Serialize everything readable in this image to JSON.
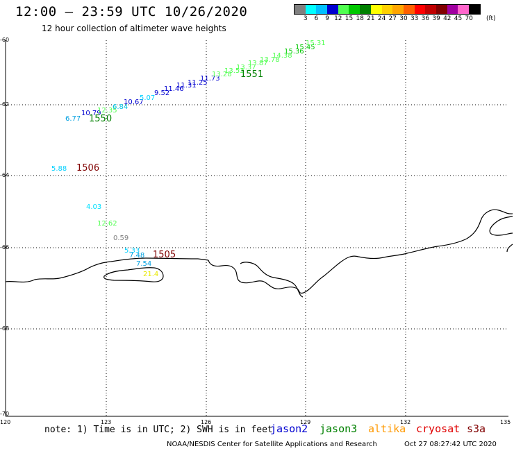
{
  "title": "12:00 – 23:59 UTC 10/26/2020",
  "subtitle": "12 hour collection of altimeter wave heights",
  "colorbar": {
    "colors": [
      "#808080",
      "#00ffff",
      "#00bfff",
      "#0000d0",
      "#50ff50",
      "#00c800",
      "#008000",
      "#ffff00",
      "#ffd000",
      "#ffa500",
      "#ff6000",
      "#ff0000",
      "#c00000",
      "#800000",
      "#a000a0",
      "#ff66cc",
      "#000000"
    ],
    "labels": [
      "3",
      "6",
      "9",
      "12",
      "15",
      "18",
      "21",
      "24",
      "27",
      "30",
      "33",
      "36",
      "39",
      "42",
      "45",
      "70"
    ],
    "unit": "(ft)"
  },
  "map": {
    "lat_labels": [
      "-60",
      "-62",
      "-64",
      "-66",
      "-68",
      "-70"
    ],
    "lon_labels": [
      "120",
      "123",
      "126",
      "129",
      "132",
      "135"
    ],
    "observations": [
      {
        "text": "6.77",
        "color": "#00a0e0"
      },
      {
        "text": "10.79",
        "color": "#0000d0"
      },
      {
        "text": "12.35",
        "color": "#50ff50"
      },
      {
        "text": "6.84",
        "color": "#00c0e0"
      },
      {
        "text": "10.67",
        "color": "#0000d0"
      },
      {
        "text": "5.07",
        "color": "#00d0ff"
      },
      {
        "text": "9.52",
        "color": "#0000d0"
      },
      {
        "text": "11.46",
        "color": "#0000d0"
      },
      {
        "text": "11.31",
        "color": "#0000d0"
      },
      {
        "text": "11.25",
        "color": "#0000d0"
      },
      {
        "text": "11.73",
        "color": "#0000d0"
      },
      {
        "text": "13.28",
        "color": "#50ff50"
      },
      {
        "text": "13.53",
        "color": "#50ff50"
      },
      {
        "text": "13.37",
        "color": "#50ff50"
      },
      {
        "text": "13.87",
        "color": "#50ff50"
      },
      {
        "text": "13.78",
        "color": "#50ff50"
      },
      {
        "text": "14.38",
        "color": "#50ff50"
      },
      {
        "text": "15.36",
        "color": "#00c800"
      },
      {
        "text": "15.45",
        "color": "#00c800"
      },
      {
        "text": "15.31",
        "color": "#50ff50"
      },
      {
        "text": "5.88",
        "color": "#00d0ff"
      },
      {
        "text": "4.03",
        "color": "#00e0ff"
      },
      {
        "text": "12.62",
        "color": "#50ff50"
      },
      {
        "text": "0.59",
        "color": "#808080"
      },
      {
        "text": "5.33",
        "color": "#00d0ff"
      },
      {
        "text": "7.48",
        "color": "#00a0e0"
      },
      {
        "text": "7.54",
        "color": "#00a0e0"
      },
      {
        "text": "21.4",
        "color": "#e8e800"
      }
    ],
    "cycle_labels": [
      {
        "text": "1550",
        "color": "#008000"
      },
      {
        "text": "1551",
        "color": "#008000"
      },
      {
        "text": "1506",
        "color": "#800000"
      },
      {
        "text": "1505",
        "color": "#800000"
      }
    ]
  },
  "footer": {
    "note": "note: 1) Time is in UTC; 2) SWH is in feet",
    "satellites": [
      {
        "name": "jason2",
        "color": "#0000d0"
      },
      {
        "name": "jason3",
        "color": "#008000"
      },
      {
        "name": "altika",
        "color": "#ff9900"
      },
      {
        "name": "cryosat",
        "color": "#e00000"
      },
      {
        "name": "s3a",
        "color": "#800000"
      }
    ],
    "credit": "NOAA/NESDIS Center for Satellite Applications and Research",
    "timestamp": "Oct 27 08:27:42 UTC 2020"
  }
}
